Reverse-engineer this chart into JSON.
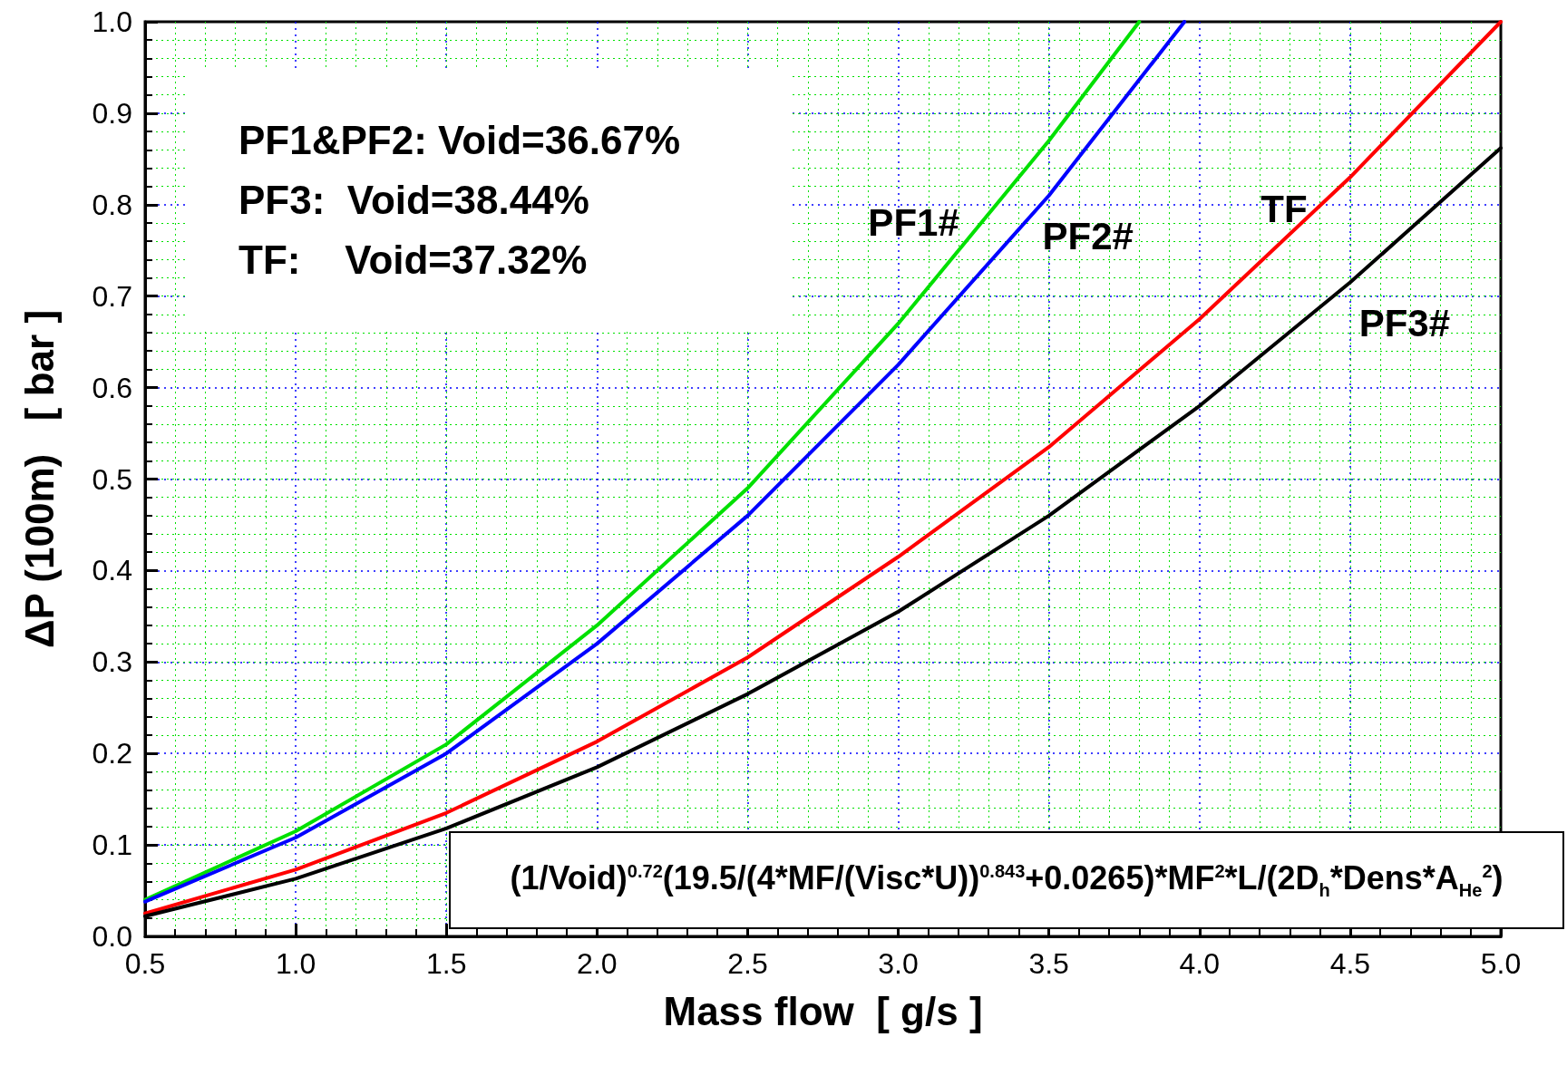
{
  "chart_data": {
    "type": "line",
    "xlabel": "Mass flow  [ g/s ]",
    "ylabel": "ΔP (100m)   [ bar ]",
    "xlim": [
      0.5,
      5.0
    ],
    "ylim": [
      0.0,
      1.0
    ],
    "xticks": [
      {
        "value": 0.5,
        "label": "0.5"
      },
      {
        "value": 1,
        "label": "1.0"
      },
      {
        "value": 1.5,
        "label": "1.5"
      },
      {
        "value": 2,
        "label": "2.0"
      },
      {
        "value": 2.5,
        "label": "2.5"
      },
      {
        "value": 3,
        "label": "3.0"
      },
      {
        "value": 3.5,
        "label": "3.5"
      },
      {
        "value": 4,
        "label": "4.0"
      },
      {
        "value": 4.5,
        "label": "4.5"
      },
      {
        "value": 5,
        "label": "5.0"
      }
    ],
    "yticks": [
      {
        "value": 0,
        "label": "0.0"
      },
      {
        "value": 0.1,
        "label": "0.1"
      },
      {
        "value": 0.2,
        "label": "0.2"
      },
      {
        "value": 0.3,
        "label": "0.3"
      },
      {
        "value": 0.4,
        "label": "0.4"
      },
      {
        "value": 0.5,
        "label": "0.5"
      },
      {
        "value": 0.6,
        "label": "0.6"
      },
      {
        "value": 0.7,
        "label": "0.7"
      },
      {
        "value": 0.8,
        "label": "0.8"
      },
      {
        "value": 0.9,
        "label": "0.9"
      },
      {
        "value": 1,
        "label": "1.0"
      }
    ],
    "grid": true,
    "marker": "none",
    "line_style": "solid",
    "legend": false,
    "series": [
      {
        "name": "PF1#",
        "color": "#00e000",
        "x": [
          0.5,
          1.0,
          1.5,
          2.0,
          2.5,
          3.0,
          3.5,
          3.8
        ],
        "values": [
          0.04,
          0.115,
          0.21,
          0.34,
          0.49,
          0.67,
          0.87,
          1.0
        ]
      },
      {
        "name": "PF2#",
        "color": "#0000ff",
        "x": [
          0.5,
          1.0,
          1.5,
          2.0,
          2.5,
          3.0,
          3.5,
          3.95
        ],
        "values": [
          0.038,
          0.108,
          0.2,
          0.32,
          0.46,
          0.625,
          0.81,
          1.0
        ]
      },
      {
        "name": "TF",
        "color": "#ff0000",
        "x": [
          0.5,
          1.0,
          1.5,
          2.0,
          2.5,
          3.0,
          3.5,
          4.0,
          4.5,
          5.0
        ],
        "values": [
          0.025,
          0.073,
          0.135,
          0.213,
          0.305,
          0.415,
          0.535,
          0.675,
          0.83,
          1.0
        ]
      },
      {
        "name": "PF3#",
        "color": "#000000",
        "x": [
          0.5,
          1.0,
          1.5,
          2.0,
          2.5,
          3.0,
          3.5,
          4.0,
          4.5,
          5.0
        ],
        "values": [
          0.022,
          0.063,
          0.118,
          0.185,
          0.265,
          0.355,
          0.46,
          0.58,
          0.715,
          0.862
        ]
      }
    ],
    "annotations": [
      "PF1&PF2: Void=36.67%",
      "PF3:  Void=38.44%",
      "TF:    Void=37.32%",
      "(1/Void)$^{0.72}$(19.5/(4*MF/(Visc*U))$^{0.843}$+0.0265)*MF$^{2}$*L/(2D$_{h}$*Dens*A$_{He}$$^{2}$)"
    ]
  }
}
